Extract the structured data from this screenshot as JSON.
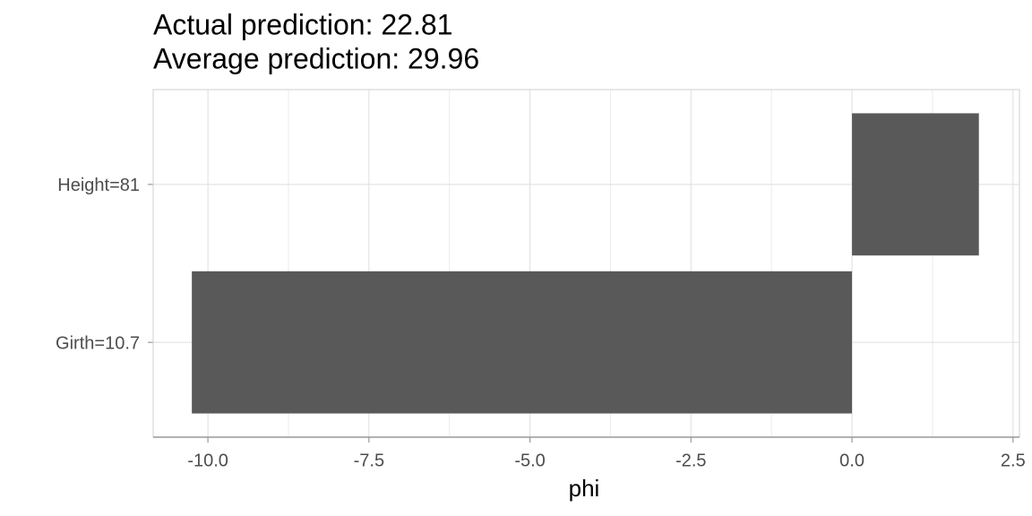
{
  "chart_data": {
    "type": "bar",
    "orientation": "horizontal",
    "title": "Actual prediction: 22.81",
    "subtitle": "Average prediction: 29.96",
    "xlabel": "phi",
    "categories": [
      "Height=81",
      "Girth=10.7"
    ],
    "values": [
      1.97,
      -10.25
    ],
    "color": "#595959",
    "xlim": [
      -10.85,
      2.6
    ],
    "xticks": [
      {
        "value": -10,
        "label": "-10.0"
      },
      -7.5,
      {
        "value": -5,
        "label": "-5.0"
      },
      -2.5,
      {
        "value": 0,
        "label": "0.0"
      },
      2.5
    ],
    "grid": true
  }
}
